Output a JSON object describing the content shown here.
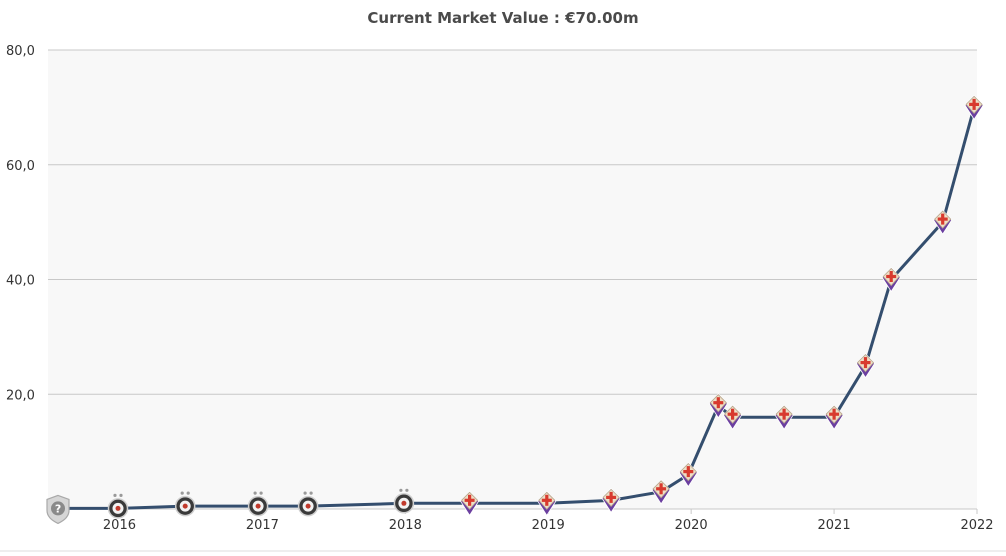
{
  "chart_data": {
    "type": "line",
    "title": "Current Market Value : €70.00m",
    "xlabel": "",
    "ylabel": "",
    "xlim": [
      2015.5,
      2022.0
    ],
    "ylim": [
      0,
      80
    ],
    "y_ticks": [
      "20,0",
      "40,0",
      "60,0",
      "80,0"
    ],
    "y_tick_values": [
      20,
      40,
      60,
      80
    ],
    "x_ticks": [
      "2016",
      "2017",
      "2018",
      "2019",
      "2020",
      "2021",
      "2022"
    ],
    "x_tick_values": [
      2016,
      2017,
      2018,
      2019,
      2020,
      2021,
      2022
    ],
    "grid": true,
    "series": [
      {
        "line_color": "#344e6e",
        "points": [
          {
            "x": 2015.57,
            "y": 0.1,
            "club": "unknown"
          },
          {
            "x": 2015.99,
            "y": 0.1,
            "club": "partizan"
          },
          {
            "x": 2016.46,
            "y": 0.5,
            "club": "partizan"
          },
          {
            "x": 2016.97,
            "y": 0.5,
            "club": "partizan"
          },
          {
            "x": 2017.32,
            "y": 0.5,
            "club": "partizan"
          },
          {
            "x": 2017.99,
            "y": 1.0,
            "club": "partizan"
          },
          {
            "x": 2018.45,
            "y": 1.0,
            "club": "fiorentina"
          },
          {
            "x": 2018.99,
            "y": 1.0,
            "club": "fiorentina"
          },
          {
            "x": 2019.44,
            "y": 1.5,
            "club": "fiorentina"
          },
          {
            "x": 2019.79,
            "y": 3.0,
            "club": "fiorentina"
          },
          {
            "x": 2019.98,
            "y": 6.0,
            "club": "fiorentina"
          },
          {
            "x": 2020.19,
            "y": 18.0,
            "club": "fiorentina"
          },
          {
            "x": 2020.29,
            "y": 16.0,
            "club": "fiorentina"
          },
          {
            "x": 2020.65,
            "y": 16.0,
            "club": "fiorentina"
          },
          {
            "x": 2021.0,
            "y": 16.0,
            "club": "fiorentina"
          },
          {
            "x": 2021.22,
            "y": 25.0,
            "club": "fiorentina"
          },
          {
            "x": 2021.4,
            "y": 40.0,
            "club": "fiorentina"
          },
          {
            "x": 2021.76,
            "y": 50.0,
            "club": "fiorentina"
          },
          {
            "x": 2021.98,
            "y": 70.0,
            "club": "fiorentina"
          }
        ]
      }
    ],
    "marker_icons": {
      "unknown": "question-shield-icon",
      "partizan": "partizan-crest-icon",
      "fiorentina": "fiorentina-crest-icon"
    }
  }
}
